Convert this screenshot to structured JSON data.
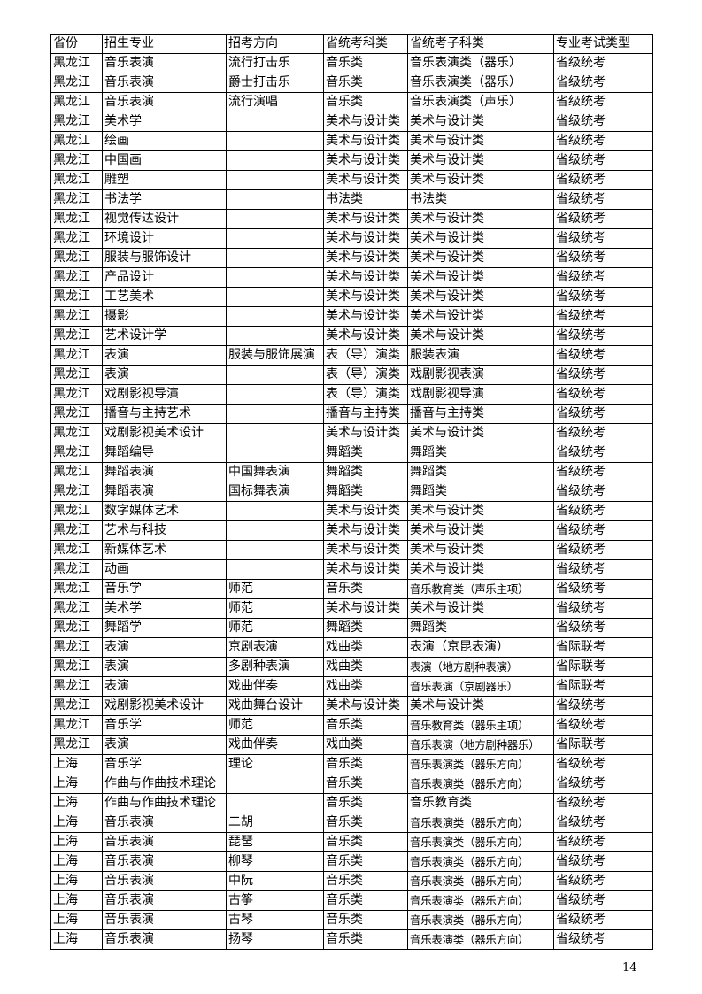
{
  "table": {
    "headers": [
      "省份",
      "招生专业",
      "招考方向",
      "省统考科类",
      "省统考子科类",
      "专业考试类型"
    ],
    "rows": [
      [
        "黑龙江",
        "音乐表演",
        "流行打击乐",
        "音乐类",
        "音乐表演类（器乐）",
        "省级统考"
      ],
      [
        "黑龙江",
        "音乐表演",
        "爵士打击乐",
        "音乐类",
        "音乐表演类（器乐）",
        "省级统考"
      ],
      [
        "黑龙江",
        "音乐表演",
        "流行演唱",
        "音乐类",
        "音乐表演类（声乐）",
        "省级统考"
      ],
      [
        "黑龙江",
        "美术学",
        "",
        "美术与设计类",
        "美术与设计类",
        "省级统考"
      ],
      [
        "黑龙江",
        "绘画",
        "",
        "美术与设计类",
        "美术与设计类",
        "省级统考"
      ],
      [
        "黑龙江",
        "中国画",
        "",
        "美术与设计类",
        "美术与设计类",
        "省级统考"
      ],
      [
        "黑龙江",
        "雕塑",
        "",
        "美术与设计类",
        "美术与设计类",
        "省级统考"
      ],
      [
        "黑龙江",
        "书法学",
        "",
        "书法类",
        "书法类",
        "省级统考"
      ],
      [
        "黑龙江",
        "视觉传达设计",
        "",
        "美术与设计类",
        "美术与设计类",
        "省级统考"
      ],
      [
        "黑龙江",
        "环境设计",
        "",
        "美术与设计类",
        "美术与设计类",
        "省级统考"
      ],
      [
        "黑龙江",
        "服装与服饰设计",
        "",
        "美术与设计类",
        "美术与设计类",
        "省级统考"
      ],
      [
        "黑龙江",
        "产品设计",
        "",
        "美术与设计类",
        "美术与设计类",
        "省级统考"
      ],
      [
        "黑龙江",
        "工艺美术",
        "",
        "美术与设计类",
        "美术与设计类",
        "省级统考"
      ],
      [
        "黑龙江",
        "摄影",
        "",
        "美术与设计类",
        "美术与设计类",
        "省级统考"
      ],
      [
        "黑龙江",
        "艺术设计学",
        "",
        "美术与设计类",
        "美术与设计类",
        "省级统考"
      ],
      [
        "黑龙江",
        "表演",
        "服装与服饰展演",
        "表（导）演类",
        "服装表演",
        "省级统考"
      ],
      [
        "黑龙江",
        "表演",
        "",
        "表（导）演类",
        "戏剧影视表演",
        "省级统考"
      ],
      [
        "黑龙江",
        "戏剧影视导演",
        "",
        "表（导）演类",
        "戏剧影视导演",
        "省级统考"
      ],
      [
        "黑龙江",
        "播音与主持艺术",
        "",
        "播音与主持类",
        "播音与主持类",
        "省级统考"
      ],
      [
        "黑龙江",
        "戏剧影视美术设计",
        "",
        "美术与设计类",
        "美术与设计类",
        "省级统考"
      ],
      [
        "黑龙江",
        "舞蹈编导",
        "",
        "舞蹈类",
        "舞蹈类",
        "省级统考"
      ],
      [
        "黑龙江",
        "舞蹈表演",
        "中国舞表演",
        "舞蹈类",
        "舞蹈类",
        "省级统考"
      ],
      [
        "黑龙江",
        "舞蹈表演",
        "国标舞表演",
        "舞蹈类",
        "舞蹈类",
        "省级统考"
      ],
      [
        "黑龙江",
        "数字媒体艺术",
        "",
        "美术与设计类",
        "美术与设计类",
        "省级统考"
      ],
      [
        "黑龙江",
        "艺术与科技",
        "",
        "美术与设计类",
        "美术与设计类",
        "省级统考"
      ],
      [
        "黑龙江",
        "新媒体艺术",
        "",
        "美术与设计类",
        "美术与设计类",
        "省级统考"
      ],
      [
        "黑龙江",
        "动画",
        "",
        "美术与设计类",
        "美术与设计类",
        "省级统考"
      ],
      [
        "黑龙江",
        "音乐学",
        "师范",
        "音乐类",
        "音乐教育类（声乐主项）",
        "省级统考"
      ],
      [
        "黑龙江",
        "美术学",
        "师范",
        "美术与设计类",
        "美术与设计类",
        "省级统考"
      ],
      [
        "黑龙江",
        "舞蹈学",
        "师范",
        "舞蹈类",
        "舞蹈类",
        "省级统考"
      ],
      [
        "黑龙江",
        "表演",
        "京剧表演",
        "戏曲类",
        "表演（京昆表演）",
        "省际联考"
      ],
      [
        "黑龙江",
        "表演",
        "多剧种表演",
        "戏曲类",
        "表演（地方剧种表演）",
        "省际联考"
      ],
      [
        "黑龙江",
        "表演",
        "戏曲伴奏",
        "戏曲类",
        "音乐表演（京剧器乐）",
        "省际联考"
      ],
      [
        "黑龙江",
        "戏剧影视美术设计",
        "戏曲舞台设计",
        "美术与设计类",
        "美术与设计类",
        "省级统考"
      ],
      [
        "黑龙江",
        "音乐学",
        "师范",
        "音乐类",
        "音乐教育类（器乐主项）",
        "省级统考"
      ],
      [
        "黑龙江",
        "表演",
        "戏曲伴奏",
        "戏曲类",
        "音乐表演（地方剧种器乐）",
        "省际联考"
      ],
      [
        "上海",
        "音乐学",
        "理论",
        "音乐类",
        "音乐表演类（器乐方向）",
        "省级统考"
      ],
      [
        "上海",
        "作曲与作曲技术理论",
        "",
        "音乐类",
        "音乐表演类（器乐方向）",
        "省级统考"
      ],
      [
        "上海",
        "作曲与作曲技术理论",
        "",
        "音乐类",
        "音乐教育类",
        "省级统考"
      ],
      [
        "上海",
        "音乐表演",
        "二胡",
        "音乐类",
        "音乐表演类（器乐方向）",
        "省级统考"
      ],
      [
        "上海",
        "音乐表演",
        "琵琶",
        "音乐类",
        "音乐表演类（器乐方向）",
        "省级统考"
      ],
      [
        "上海",
        "音乐表演",
        "柳琴",
        "音乐类",
        "音乐表演类（器乐方向）",
        "省级统考"
      ],
      [
        "上海",
        "音乐表演",
        "中阮",
        "音乐类",
        "音乐表演类（器乐方向）",
        "省级统考"
      ],
      [
        "上海",
        "音乐表演",
        "古筝",
        "音乐类",
        "音乐表演类（器乐方向）",
        "省级统考"
      ],
      [
        "上海",
        "音乐表演",
        "古琴",
        "音乐类",
        "音乐表演类（器乐方向）",
        "省级统考"
      ],
      [
        "上海",
        "音乐表演",
        "扬琴",
        "音乐类",
        "音乐表演类（器乐方向）",
        "省级统考"
      ]
    ]
  },
  "page_number": "14"
}
